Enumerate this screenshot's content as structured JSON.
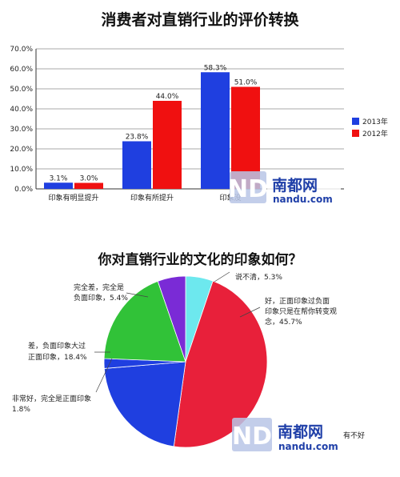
{
  "chart_data": [
    {
      "type": "bar",
      "title": "消费者对直销行业的评价转换",
      "categories": [
        "印象有明显提升",
        "印象有所提升",
        "印象没"
      ],
      "series": [
        {
          "name": "2013年",
          "color": "#1f3fe0",
          "values": [
            3.1,
            23.8,
            58.3
          ]
        },
        {
          "name": "2012年",
          "color": "#f01010",
          "values": [
            3.0,
            44.0,
            51.0
          ]
        }
      ],
      "data_labels": [
        [
          "3.1%",
          "3.0%"
        ],
        [
          "23.8%",
          "44.0%"
        ],
        [
          "58.3%",
          "51.0%"
        ]
      ],
      "ylim": [
        0,
        70
      ],
      "yticks": [
        "0.0%",
        "10.0%",
        "20.0%",
        "30.0%",
        "40.0%",
        "50.0%",
        "60.0%",
        "70.0%"
      ],
      "legend_position": "right",
      "grid": true
    },
    {
      "type": "pie",
      "title": "你对直销行业的文化的印象如何？",
      "slices": [
        {
          "label": "说不清，5.3%",
          "value": 5.3,
          "color": "#6de8ee"
        },
        {
          "label": "好，正面印象过负面印象只是在帮你转变观念，45.7%",
          "value": 45.7,
          "color": "#e8203a"
        },
        {
          "label": "",
          "value": 20.9,
          "color": "#1f3fe0"
        },
        {
          "label": "非常好，完全是正面印象 1.8%",
          "value": 1.8,
          "color": "#1f3fe0"
        },
        {
          "label": "差，负面印象大过正面印象，18.4%",
          "value": 18.4,
          "color": "#31c238"
        },
        {
          "label": "完全差，完全是负面印象，5.4%",
          "value": 5.4,
          "color": "#7a2bd6"
        }
      ]
    }
  ],
  "pie_labels": {
    "unclear": "说不清，5.3%",
    "good_1": "好，正面印象过负面",
    "good_2": "印象只是在帮你转变观",
    "good_3": "念，45.7%",
    "worst_1": "完全差，完全是",
    "worst_2": "负面印象，5.4%",
    "bad_1": "差，负面印象大过",
    "bad_2": "正面印象，18.4%",
    "verygood_1": "非常好，完全是正面印象",
    "verygood_2": "1.8%",
    "partial": "有不好"
  },
  "watermark": {
    "brand": "南都网",
    "url": "nandu.com",
    "logo": "ND"
  },
  "colors": {
    "blue": "#1f3fe0",
    "red": "#f01010"
  }
}
